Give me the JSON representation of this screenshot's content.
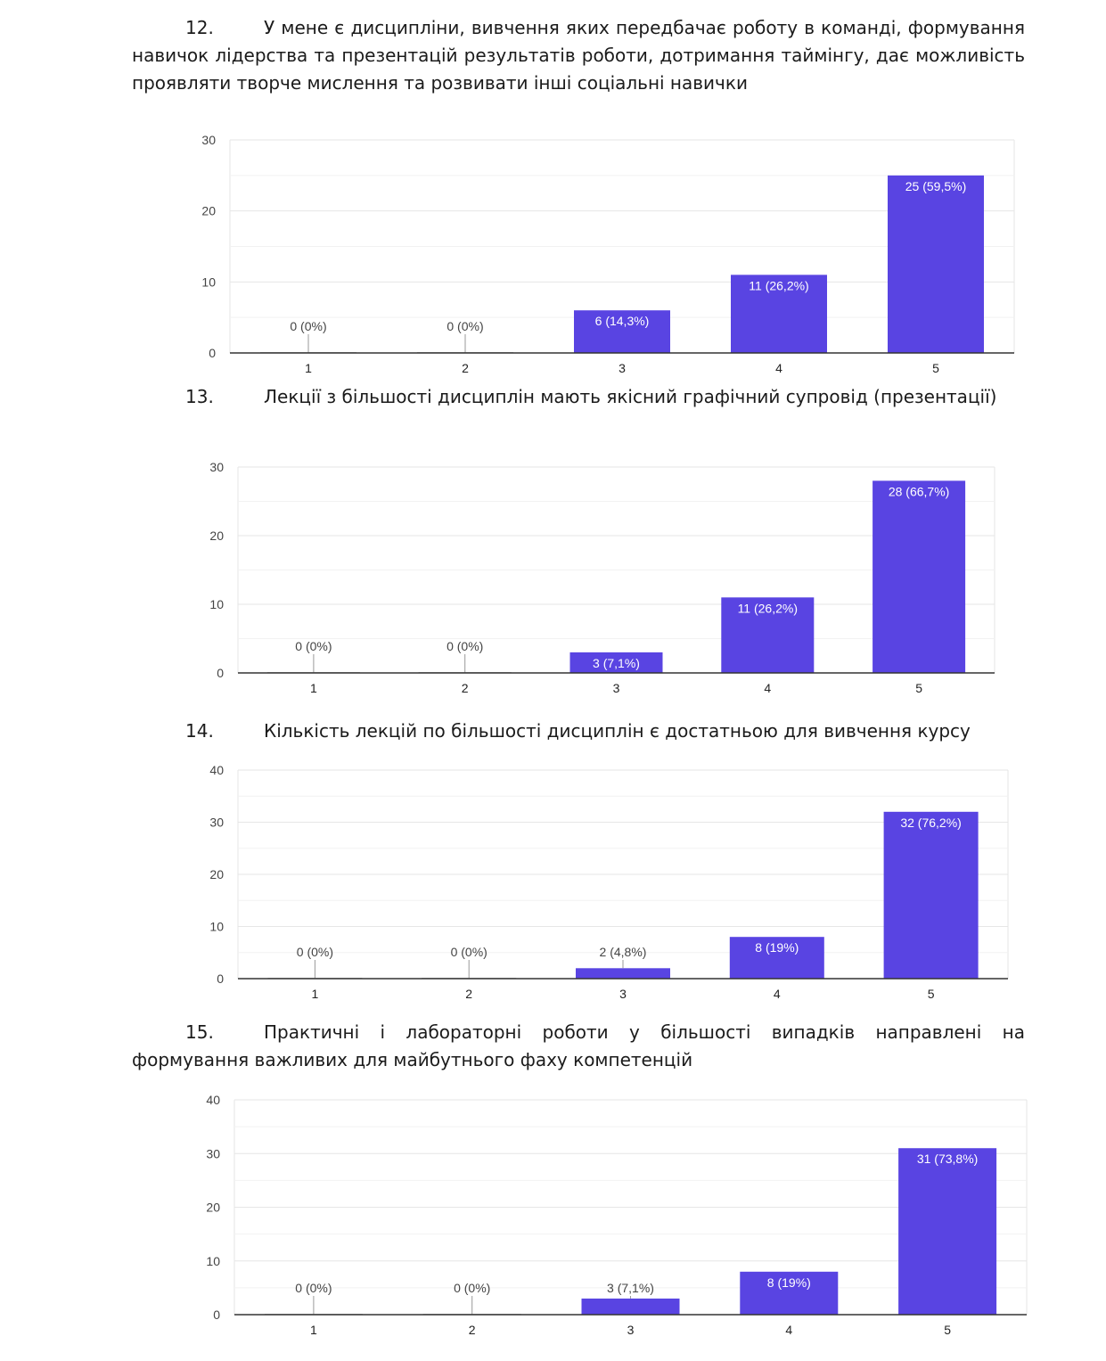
{
  "questions": [
    {
      "number": "12.",
      "text": "У мене є дисципліни, вивчення яких передбачає роботу в команді, формування навичок лідерства та презентацій результатів роботи, дотримання таймінгу, дає можливість проявляти творче мислення та розвивати інші соціальні навички"
    },
    {
      "number": "13.",
      "text": "Лекції з більшості дисциплін мають якісний графічний супровід (презентації)"
    },
    {
      "number": "14.",
      "text": "Кількість лекцій по більшості дисциплін є достатньою для вивчення курсу"
    },
    {
      "number": "15.",
      "text": "Практичні і лабораторні роботи у більшості випадків направлені на формування важливих для майбутнього фаху компетенцій"
    }
  ],
  "colors": {
    "bar": "#5944e2",
    "grid": "#e6e6e6",
    "axis": "#333333"
  },
  "chart_data": [
    {
      "type": "bar",
      "categories": [
        "1",
        "2",
        "3",
        "4",
        "5"
      ],
      "values": [
        0,
        0,
        6,
        11,
        25
      ],
      "data_labels": [
        "0 (0%)",
        "0 (0%)",
        "6 (14,3%)",
        "11 (26,2%)",
        "25 (59,5%)"
      ],
      "ylim": [
        0,
        30
      ],
      "yticks": [
        "0",
        "10",
        "20",
        "30"
      ],
      "grid": true
    },
    {
      "type": "bar",
      "categories": [
        "1",
        "2",
        "3",
        "4",
        "5"
      ],
      "values": [
        0,
        0,
        3,
        11,
        28
      ],
      "data_labels": [
        "0 (0%)",
        "0 (0%)",
        "3 (7,1%)",
        "11 (26,2%)",
        "28 (66,7%)"
      ],
      "ylim": [
        0,
        30
      ],
      "yticks": [
        "0",
        "10",
        "20",
        "30"
      ],
      "grid": true
    },
    {
      "type": "bar",
      "categories": [
        "1",
        "2",
        "3",
        "4",
        "5"
      ],
      "values": [
        0,
        0,
        2,
        8,
        32
      ],
      "data_labels": [
        "0 (0%)",
        "0 (0%)",
        "2 (4,8%)",
        "8 (19%)",
        "32 (76,2%)"
      ],
      "ylim": [
        0,
        40
      ],
      "yticks": [
        "0",
        "10",
        "20",
        "30",
        "40"
      ],
      "grid": true
    },
    {
      "type": "bar",
      "categories": [
        "1",
        "2",
        "3",
        "4",
        "5"
      ],
      "values": [
        0,
        0,
        3,
        8,
        31
      ],
      "data_labels": [
        "0 (0%)",
        "0 (0%)",
        "3 (7,1%)",
        "8 (19%)",
        "31 (73,8%)"
      ],
      "ylim": [
        0,
        40
      ],
      "yticks": [
        "0",
        "10",
        "20",
        "30",
        "40"
      ],
      "grid": true
    }
  ]
}
